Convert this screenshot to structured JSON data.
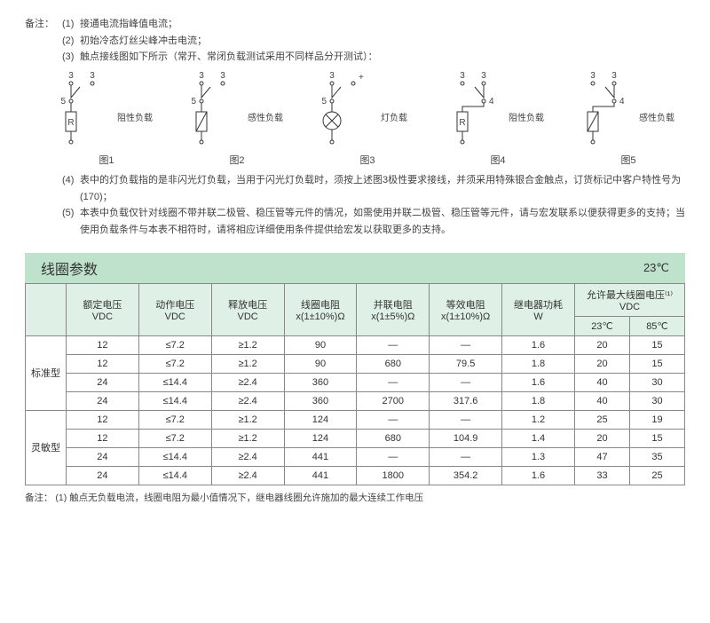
{
  "notes_label": "备注：",
  "notes": [
    {
      "num": "(1)",
      "text": "接通电流指峰值电流；"
    },
    {
      "num": "(2)",
      "text": "初始冷态灯丝尖峰冲击电流；"
    },
    {
      "num": "(3)",
      "text": "触点接线图如下所示（常开、常闭负载测试采用不同样品分开测试）："
    },
    {
      "num": "(4)",
      "text": "表中的灯负载指的是非闪光灯负载，当用于闪光灯负载时，须按上述图3极性要求接线，并须采用特殊银合金触点，订货标记中客户特性号为(170)；"
    },
    {
      "num": "(5)",
      "text": "本表中负载仅针对线圈不带并联二极管、稳压管等元件的情况，如需使用并联二极管、稳压管等元件，请与宏发联系以便获得更多的支持；当使用负载条件与本表不相符时，请将相应详细使用条件提供给宏发以获取更多的支持。"
    }
  ],
  "diagrams": [
    {
      "label": "图1",
      "load": "阻性负载",
      "type": "R"
    },
    {
      "label": "图2",
      "load": "感性负载",
      "type": "L"
    },
    {
      "label": "图3",
      "load": "灯负载",
      "type": "LAMP"
    },
    {
      "label": "图4",
      "load": "阻性负载",
      "type": "R4"
    },
    {
      "label": "图5",
      "load": "感性负载",
      "type": "L2"
    }
  ],
  "section": {
    "title": "线圈参数",
    "temp": "23℃"
  },
  "table": {
    "headers": {
      "cat": "",
      "rated_v": "额定电压\nVDC",
      "operate_v": "动作电压\nVDC",
      "release_v": "释放电压\nVDC",
      "coil_r": "线圈电阻\nx(1±10%)Ω",
      "parallel_r": "并联电阻\nx(1±5%)Ω",
      "equiv_r": "等效电阻\nx(1±10%)Ω",
      "power": "继电器功耗\nW",
      "max_v": "允许最大线圈电压⁽¹⁾\nVDC",
      "t23": "23℃",
      "t85": "85℃"
    },
    "groups": [
      {
        "name": "标准型",
        "rows": [
          [
            "12",
            "≤7.2",
            "≥1.2",
            "90",
            "—",
            "—",
            "1.6",
            "20",
            "15"
          ],
          [
            "12",
            "≤7.2",
            "≥1.2",
            "90",
            "680",
            "79.5",
            "1.8",
            "20",
            "15"
          ],
          [
            "24",
            "≤14.4",
            "≥2.4",
            "360",
            "—",
            "—",
            "1.6",
            "40",
            "30"
          ],
          [
            "24",
            "≤14.4",
            "≥2.4",
            "360",
            "2700",
            "317.6",
            "1.8",
            "40",
            "30"
          ]
        ]
      },
      {
        "name": "灵敏型",
        "rows": [
          [
            "12",
            "≤7.2",
            "≥1.2",
            "124",
            "—",
            "—",
            "1.2",
            "25",
            "19"
          ],
          [
            "12",
            "≤7.2",
            "≥1.2",
            "124",
            "680",
            "104.9",
            "1.4",
            "20",
            "15"
          ],
          [
            "24",
            "≤14.4",
            "≥2.4",
            "441",
            "—",
            "—",
            "1.3",
            "47",
            "35"
          ],
          [
            "24",
            "≤14.4",
            "≥2.4",
            "441",
            "1800",
            "354.2",
            "1.6",
            "33",
            "25"
          ]
        ]
      }
    ]
  },
  "footnote": {
    "label": "备注：",
    "num": "(1)",
    "text": "触点无负载电流，线圈电阻为最小值情况下，继电器线圈允许施加的最大连续工作电压"
  },
  "colors": {
    "header_bg": "#bfe2cd",
    "thead_bg": "#dff0e6",
    "border": "#888888",
    "text": "#333333"
  },
  "svg_text": {
    "p3": "3",
    "p5": "5",
    "p4": "4",
    "plus": "+",
    "rsym": "R"
  }
}
